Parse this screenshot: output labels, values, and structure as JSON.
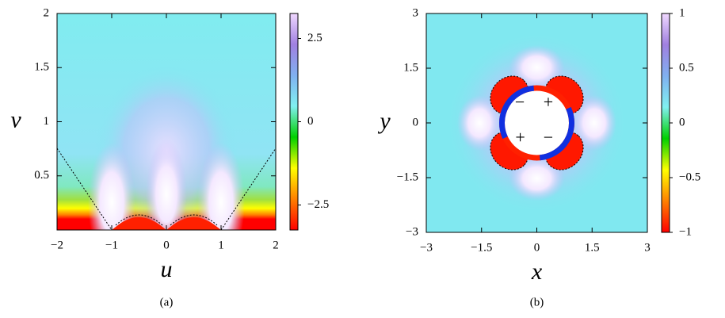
{
  "chart_data": [
    {
      "type": "heatmap",
      "caption": "(a)",
      "xlabel": "u",
      "ylabel": "v",
      "xlim": [
        -2,
        2
      ],
      "ylim": [
        0,
        2
      ],
      "xticks": [
        {
          "value": -2,
          "label": "−2"
        },
        {
          "value": -1,
          "label": "−1"
        },
        0,
        1,
        2
      ],
      "yticks": [
        0.5,
        1,
        1.5,
        2
      ],
      "colorbar": {
        "lim": [
          -3.25,
          3.25
        ],
        "ticks": [
          {
            "value": -2.5,
            "label": "−2.5"
          },
          0,
          2.5
        ]
      },
      "colorscale": [
        "#ff0000",
        "#ff8000",
        "#ffff00",
        "#00d000",
        "#80f0f0",
        "#80b0f0",
        "#a080e0",
        "#f0d8ff"
      ]
    },
    {
      "type": "heatmap",
      "caption": "(b)",
      "xlabel": "x",
      "ylabel": "y",
      "xlim": [
        -3,
        3
      ],
      "ylim": [
        -3,
        3
      ],
      "xticks": [
        {
          "value": -3,
          "label": "−3"
        },
        {
          "value": -1.5,
          "label": "−1.5"
        },
        0,
        1.5,
        3
      ],
      "yticks": [
        {
          "value": -3,
          "label": "−3"
        },
        {
          "value": -1.5,
          "label": "−1.5"
        },
        0,
        1.5,
        3
      ],
      "colorbar": {
        "lim": [
          -1,
          1
        ],
        "ticks": [
          {
            "value": -1,
            "label": "−1"
          },
          {
            "value": -0.5,
            "label": "−0.5"
          },
          0,
          0.5,
          1
        ]
      },
      "colorscale": [
        "#ff0000",
        "#ff8000",
        "#ffff00",
        "#00d000",
        "#80f0f0",
        "#80b0f0",
        "#a080e0",
        "#f0d8ff"
      ],
      "annotations": [
        {
          "text": "−",
          "x": -0.46,
          "y": 0.52
        },
        {
          "text": "+",
          "x": 0.31,
          "y": 0.52
        },
        {
          "text": "+",
          "x": -0.45,
          "y": -0.45
        },
        {
          "text": "−",
          "x": 0.31,
          "y": -0.45
        }
      ]
    }
  ]
}
